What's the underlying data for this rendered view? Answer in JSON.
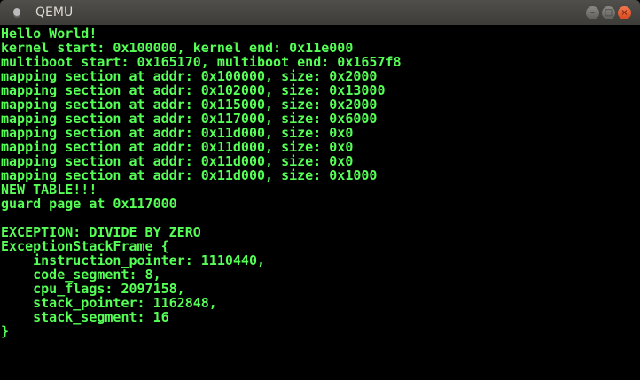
{
  "window": {
    "title": "QEMU",
    "icon": "qemu-app-icon",
    "controls": [
      "minimize",
      "maximize",
      "close"
    ]
  },
  "text_color": "#55ff55",
  "console": {
    "lines": [
      "Hello World!",
      "kernel start: 0x100000, kernel end: 0x11e000",
      "multiboot start: 0x165170, multiboot end: 0x1657f8",
      "mapping section at addr: 0x100000, size: 0x2000",
      "mapping section at addr: 0x102000, size: 0x13000",
      "mapping section at addr: 0x115000, size: 0x2000",
      "mapping section at addr: 0x117000, size: 0x6000",
      "mapping section at addr: 0x11d000, size: 0x0",
      "mapping section at addr: 0x11d000, size: 0x0",
      "mapping section at addr: 0x11d000, size: 0x0",
      "mapping section at addr: 0x11d000, size: 0x1000",
      "NEW TABLE!!!",
      "guard page at 0x117000",
      "",
      "EXCEPTION: DIVIDE BY ZERO",
      "ExceptionStackFrame {",
      "    instruction_pointer: 1110440,",
      "    code_segment: 8,",
      "    cpu_flags: 2097158,",
      "    stack_pointer: 1162848,",
      "    stack_segment: 16",
      "}"
    ]
  }
}
